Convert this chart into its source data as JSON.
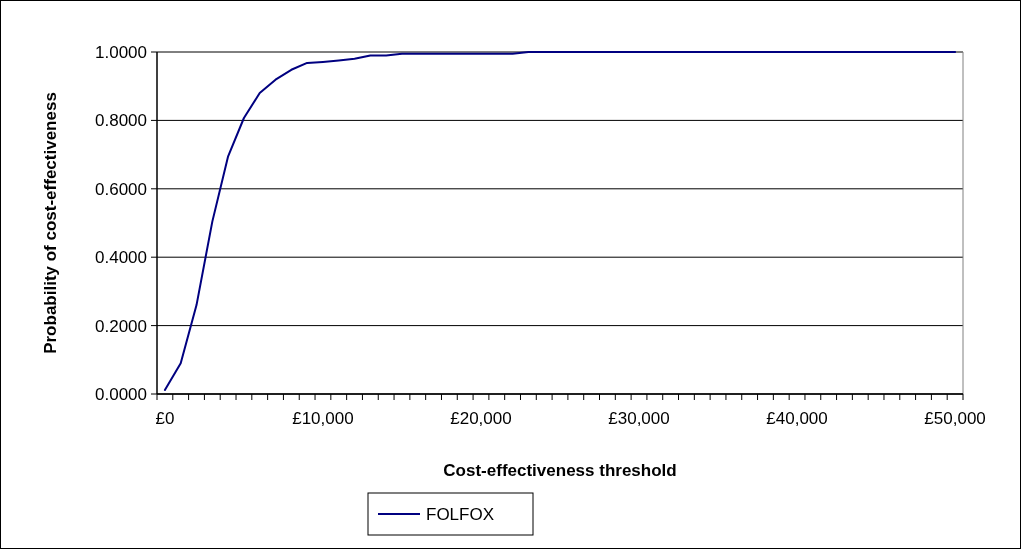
{
  "chart_data": {
    "type": "line",
    "xlabel": "Cost-effectiveness threshold",
    "ylabel": "Probability of cost-effectiveness",
    "categories": [
      "£0",
      null,
      null,
      null,
      null,
      null,
      null,
      null,
      null,
      null,
      "£10,000",
      null,
      null,
      null,
      null,
      null,
      null,
      null,
      null,
      null,
      "£20,000",
      null,
      null,
      null,
      null,
      null,
      null,
      null,
      null,
      null,
      "£30,000",
      null,
      null,
      null,
      null,
      null,
      null,
      null,
      null,
      null,
      "£40,000",
      null,
      null,
      null,
      null,
      null,
      null,
      null,
      null,
      null,
      "£50,000"
    ],
    "series": [
      {
        "name": "FOLFOX",
        "color": "#000080",
        "values": [
          0.012,
          0.09,
          0.26,
          0.504,
          0.695,
          0.807,
          0.88,
          0.919,
          0.948,
          0.968,
          0.971,
          0.975,
          0.98,
          0.99,
          0.99,
          0.995,
          0.995,
          0.995,
          0.995,
          0.995,
          0.995,
          0.995,
          0.995,
          1,
          1,
          1,
          1,
          1,
          1,
          1,
          1,
          1,
          1,
          1,
          1,
          1,
          1,
          1,
          1,
          1,
          1,
          1,
          1,
          1,
          1,
          1,
          1,
          1,
          1,
          1,
          1
        ]
      }
    ],
    "ylim": [
      0,
      1
    ],
    "yticks": [
      {
        "value": 0,
        "label": "0.0000"
      },
      {
        "value": 0.2,
        "label": "0.2000"
      },
      {
        "value": 0.4,
        "label": "0.4000"
      },
      {
        "value": 0.6,
        "label": "0.6000"
      },
      {
        "value": 0.8,
        "label": "0.8000"
      },
      {
        "value": 1,
        "label": "1.0000"
      }
    ],
    "grid": "y",
    "legend": "bottom",
    "marker": "none",
    "line_style": "solid"
  }
}
